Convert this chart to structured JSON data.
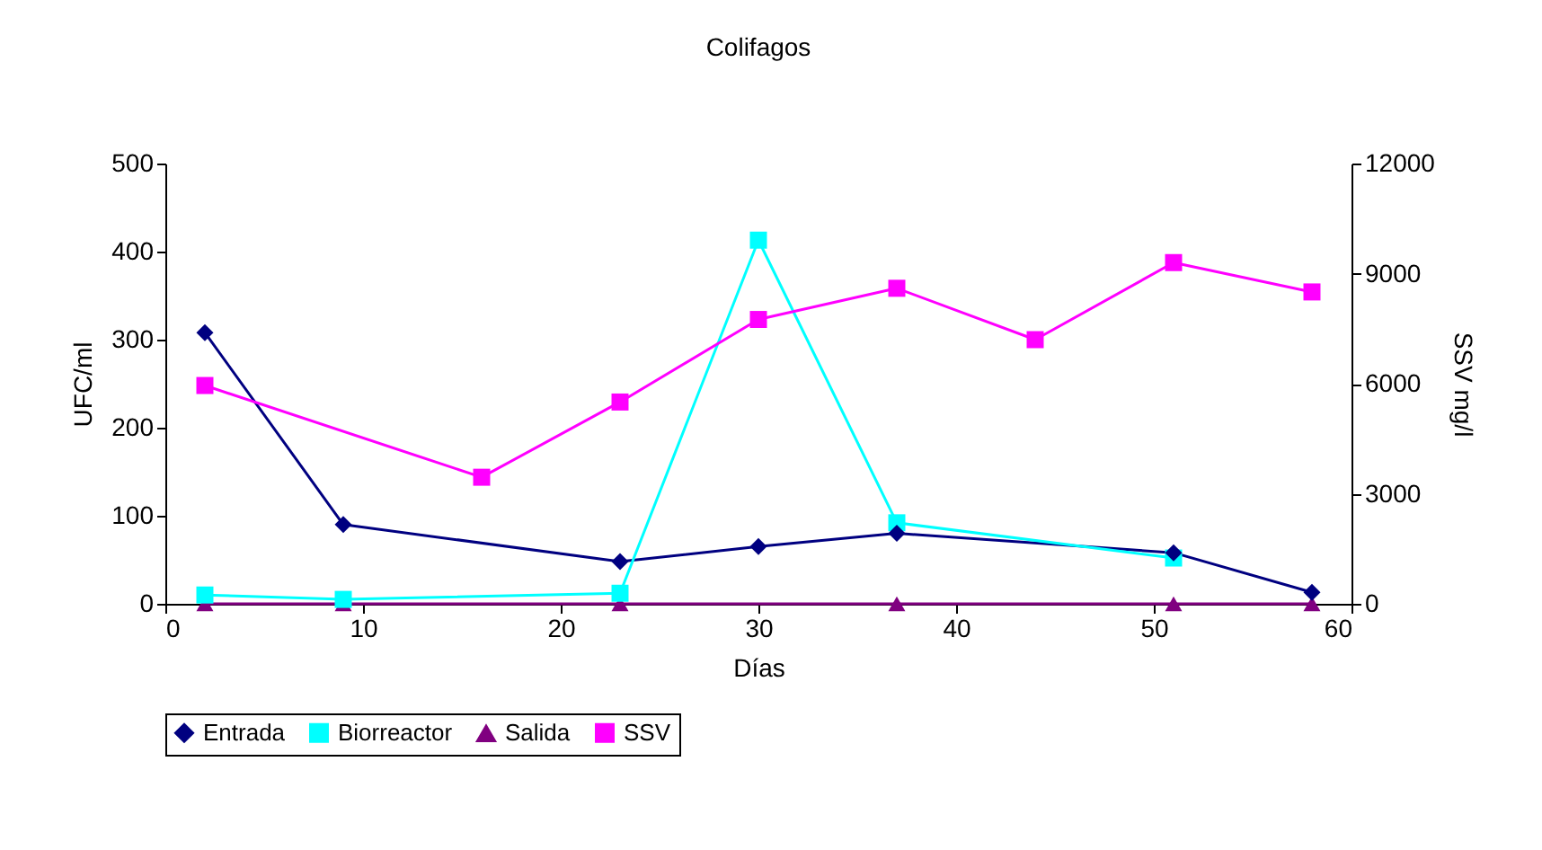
{
  "chart_data": {
    "type": "line",
    "title": "Colifagos",
    "xlabel": "Días",
    "ylabel": "UFC/ml",
    "y2label": "SSV mg/l",
    "xlim": [
      0,
      60
    ],
    "xticks": [
      0,
      10,
      20,
      30,
      40,
      50,
      60
    ],
    "ylim": [
      0,
      500
    ],
    "yticks": [
      0,
      100,
      200,
      300,
      400,
      500
    ],
    "y2lim": [
      0,
      12000
    ],
    "y2ticks": [
      0,
      3000,
      6000,
      9000,
      12000
    ],
    "legend": "bottom",
    "line_style": "solid",
    "series": [
      {
        "name": "Entrada",
        "color": "#000080",
        "marker": "diamond",
        "x": [
          2,
          9,
          23,
          30,
          37,
          51,
          58
        ],
        "values": [
          308,
          90,
          48,
          65,
          80,
          58,
          13
        ]
      },
      {
        "name": "Biorreactor",
        "color": "#00ffff",
        "marker": "square",
        "x": [
          2,
          9,
          23,
          30,
          37,
          51
        ],
        "values": [
          10,
          5,
          12,
          413,
          92,
          52
        ]
      },
      {
        "name": "Salida",
        "color": "#800080",
        "marker": "triangle",
        "x": [
          2,
          9,
          23,
          37,
          51,
          58
        ],
        "values": [
          0,
          0,
          0,
          0,
          0,
          0
        ]
      },
      {
        "name": "SSV",
        "color": "#ff00ff",
        "marker": "square",
        "axis": "y2",
        "x": [
          2,
          16,
          23,
          30,
          37,
          44,
          51,
          58
        ],
        "values": [
          5950,
          3450,
          5500,
          7750,
          8600,
          7200,
          9300,
          8500
        ]
      }
    ]
  }
}
